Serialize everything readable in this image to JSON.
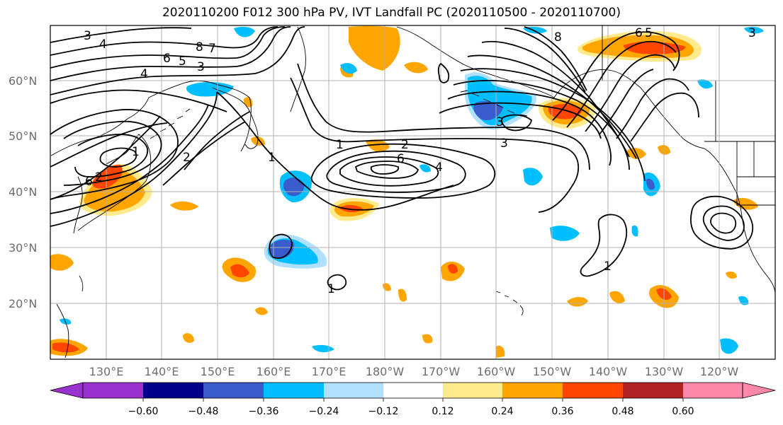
{
  "title": "2020110200 F012 300 hPa PV, IVT Landfall PC (2020110500 - 2020110700)",
  "map": {
    "lat_labels": [
      "60°N",
      "50°N",
      "40°N",
      "30°N",
      "20°N"
    ],
    "lon_labels": [
      "130°E",
      "140°E",
      "150°E",
      "160°E",
      "170°E",
      "180°W",
      "170°W",
      "160°W",
      "150°W",
      "140°W",
      "130°W",
      "120°W"
    ],
    "contour_labels": [
      "3",
      "4",
      "6",
      "5",
      "8",
      "7",
      "3",
      "4",
      "2",
      "1",
      "6",
      "2",
      "1",
      "2",
      "6",
      "4",
      "3",
      "8",
      "6",
      "5",
      "3",
      "1",
      "1",
      "1",
      "3"
    ]
  },
  "colorbar": {
    "ticks": [
      "−0.60",
      "−0.48",
      "−0.36",
      "−0.24",
      "−0.12",
      "0.12",
      "0.24",
      "0.36",
      "0.48",
      "0.60"
    ],
    "colors": [
      "#9932cc",
      "#00008b",
      "#3a5bcc",
      "#00bfff",
      "#b0e0ff",
      "#ffffff",
      "#ffeb8c",
      "#ffa500",
      "#ff4500",
      "#b22222",
      "#ff88aa"
    ]
  },
  "colors": {
    "land_outline": "#000000",
    "grid": "#b0b0b0",
    "label_gray": "#6e6e6e"
  }
}
